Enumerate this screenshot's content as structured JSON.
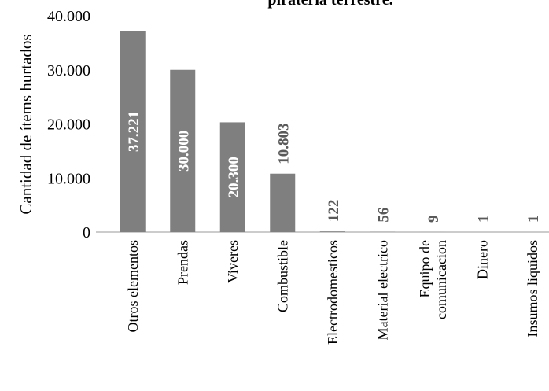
{
  "chart_data": {
    "type": "bar",
    "title": "piratería terrestre.",
    "y_label": "Cantidad de ítems hurtados",
    "categories": [
      "Otros elementos",
      "Prendas",
      "Viveres",
      "Combustible",
      "Electrodomesticos",
      "Material electrico",
      "Equipo de comunicacion",
      "Dinero",
      "Insumos liquidos"
    ],
    "values": [
      37221,
      30000,
      20300,
      10803,
      122,
      56,
      9,
      1,
      1
    ],
    "value_labels": [
      "37.221",
      "30.000",
      "20.300",
      "10.803",
      "122",
      "56",
      "9",
      "1",
      "1"
    ],
    "color": "#7f7f7f",
    "ylim": [
      0,
      40000
    ],
    "yticks": [
      0,
      {
        "value": 10000,
        "label": "10.000"
      },
      {
        "value": 20000,
        "label": "20.000"
      },
      {
        "value": 30000,
        "label": "30.000"
      },
      {
        "value": 40000,
        "label": "40.000"
      }
    ],
    "grid": false
  }
}
